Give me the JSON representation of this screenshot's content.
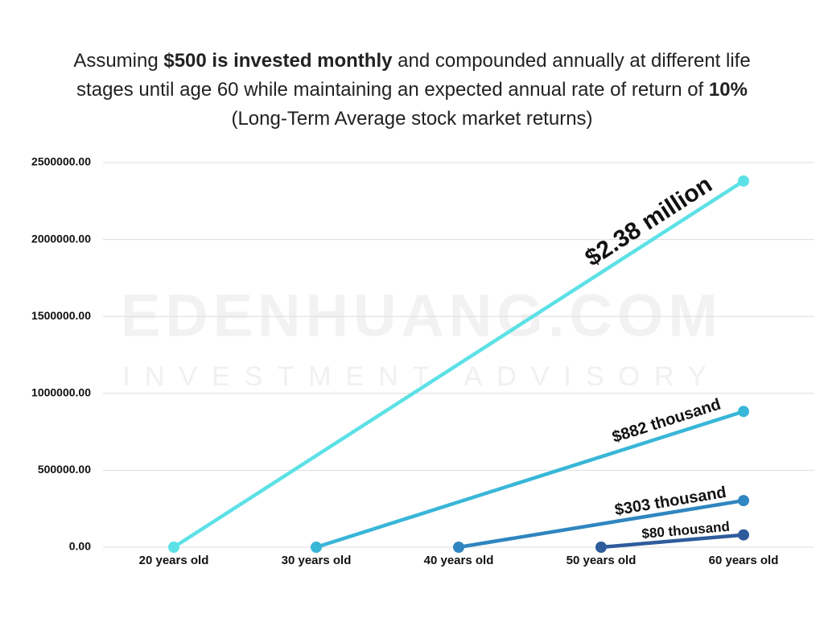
{
  "chart_data": {
    "type": "line",
    "title": [
      {
        "text": "Assuming ",
        "bold": false
      },
      {
        "text": "$500 is invested monthly",
        "bold": true
      },
      {
        "text": " and compounded annually at different life stages until age 60 while maintaining an expected annual rate of return of ",
        "bold": false
      },
      {
        "text": "10%",
        "bold": true
      },
      {
        "text": " (Long-Term Average stock market returns)",
        "bold": false
      }
    ],
    "watermark": [
      "EDENHUANG.COM",
      "INVESTMENT ADVISORY"
    ],
    "categories": [
      "20 years old",
      "30 years old",
      "40 years old",
      "50 years old",
      "60 years old"
    ],
    "ylim": [
      0,
      2500000
    ],
    "yticks": [
      {
        "value": 0,
        "label": "0.00"
      },
      {
        "value": 500000,
        "label": "500000.00"
      },
      {
        "value": 1000000,
        "label": "1000000.00"
      },
      {
        "value": 1500000,
        "label": "1500000.00"
      },
      {
        "value": 2000000,
        "label": "2000000.00"
      },
      {
        "value": 2500000,
        "label": "2500000.00"
      }
    ],
    "grid": true,
    "series": [
      {
        "color": "#5ce1e6",
        "x": [
          "20 years old",
          "60 years old"
        ],
        "values": [
          0,
          2380000
        ],
        "value_labels": [
          null,
          "$2.38 million"
        ]
      },
      {
        "color": "#38b6d8",
        "x": [
          "30 years old",
          "60 years old"
        ],
        "values": [
          0,
          882000
        ],
        "value_labels": [
          null,
          "$882 thousand"
        ]
      },
      {
        "color": "#2f86c0",
        "x": [
          "40 years old",
          "60 years old"
        ],
        "values": [
          0,
          303000
        ],
        "value_labels": [
          null,
          "$303 thousand"
        ]
      },
      {
        "color": "#2e5b9c",
        "x": [
          "50 years old",
          "60 years old"
        ],
        "values": [
          0,
          80000
        ],
        "value_labels": [
          null,
          "$80 thousand"
        ]
      }
    ]
  }
}
